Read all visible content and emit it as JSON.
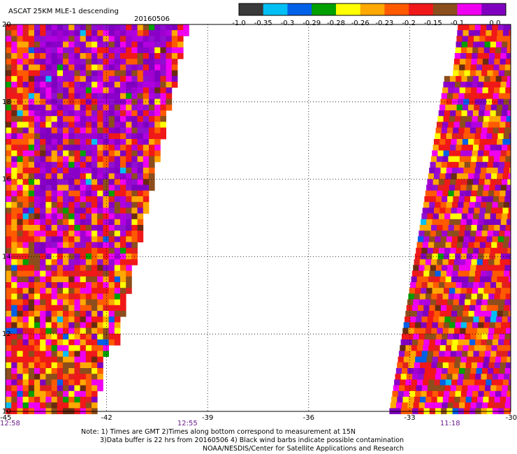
{
  "title": "ASCAT 25KM MLE-1 descending",
  "date": "20160506",
  "colorbar": {
    "tick_labels": [
      "-1.0",
      "-0.35",
      "-0.3",
      "-0.29",
      "-0.28",
      "-0.26",
      "-0.23",
      "-0.2",
      "-0.15",
      "-0.1",
      "0.0"
    ],
    "colors": [
      "#3a3a3a",
      "#00bff5",
      "#0060e8",
      "#00a000",
      "#ffff00",
      "#ffa800",
      "#ff5a00",
      "#f01818",
      "#8c4e1c",
      "#f000f0",
      "#8000c0"
    ]
  },
  "map": {
    "lon_range": [
      -45,
      -30
    ],
    "lat_range": [
      10,
      20
    ],
    "lon_ticks": [
      "-45",
      "-42",
      "-39",
      "-36",
      "-33",
      "-30"
    ],
    "lat_ticks": [
      "20",
      "18",
      "16",
      "14",
      "12",
      "10"
    ],
    "time_labels": [
      {
        "text": "12:58",
        "lon": -45
      },
      {
        "text": "12:55",
        "lon": -39.6
      },
      {
        "text": "11:18",
        "lon": -31.8
      }
    ],
    "swaths": [
      {
        "name": "west-swath",
        "time": "12:55",
        "palette_note": "purple core at north, mixed at edges"
      },
      {
        "name": "east-swath",
        "time": "11:18",
        "palette_note": "mixed with purple patches"
      }
    ]
  },
  "notes": {
    "line1": "Note: 1) Times are GMT 2)Times along bottom correspond to measurement at 15N",
    "line2": "3)Data buffer is 22 hrs from 20160506 4) Black wind barbs indicate possible contamination",
    "line3": "NOAA/NESDIS/Center for Satellite Applications and Research"
  }
}
